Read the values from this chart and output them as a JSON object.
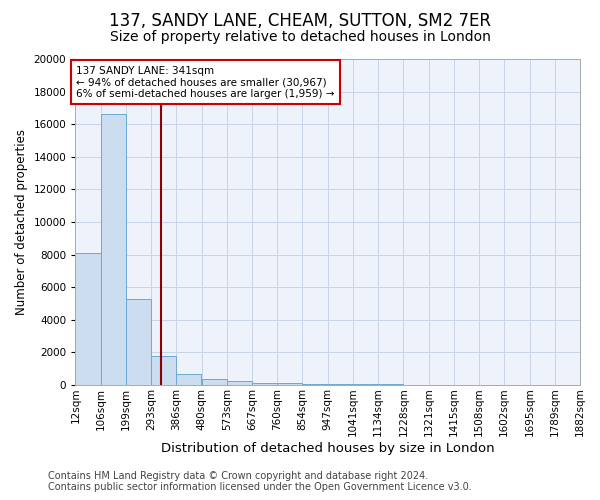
{
  "title": "137, SANDY LANE, CHEAM, SUTTON, SM2 7ER",
  "subtitle": "Size of property relative to detached houses in London",
  "xlabel": "Distribution of detached houses by size in London",
  "ylabel": "Number of detached properties",
  "bar_color": "#ccddf0",
  "bar_edge_color": "#6aaad4",
  "bin_labels": [
    "12sqm",
    "106sqm",
    "199sqm",
    "293sqm",
    "386sqm",
    "480sqm",
    "573sqm",
    "667sqm",
    "760sqm",
    "854sqm",
    "947sqm",
    "1041sqm",
    "1134sqm",
    "1228sqm",
    "1321sqm",
    "1415sqm",
    "1508sqm",
    "1602sqm",
    "1695sqm",
    "1789sqm",
    "1882sqm"
  ],
  "values": [
    8100,
    16600,
    5300,
    1800,
    650,
    350,
    220,
    140,
    95,
    65,
    48,
    38,
    28,
    22,
    18,
    14,
    11,
    9,
    7,
    5,
    0
  ],
  "ylim": [
    0,
    20000
  ],
  "yticks": [
    0,
    2000,
    4000,
    6000,
    8000,
    10000,
    12000,
    14000,
    16000,
    18000,
    20000
  ],
  "red_line_x": 3.41,
  "red_line_color": "#8b0000",
  "annotation_text": "137 SANDY LANE: 341sqm\n← 94% of detached houses are smaller (30,967)\n6% of semi-detached houses are larger (1,959) →",
  "annotation_box_color": "#ffffff",
  "annotation_box_edge_color": "#cc0000",
  "grid_color": "#c8d4e8",
  "background_color": "#edf2fb",
  "footer_text": "Contains HM Land Registry data © Crown copyright and database right 2024.\nContains public sector information licensed under the Open Government Licence v3.0.",
  "title_fontsize": 12,
  "subtitle_fontsize": 10,
  "ylabel_fontsize": 8.5,
  "xlabel_fontsize": 9.5,
  "tick_fontsize": 7.5,
  "footer_fontsize": 7,
  "annot_fontsize": 7.5
}
